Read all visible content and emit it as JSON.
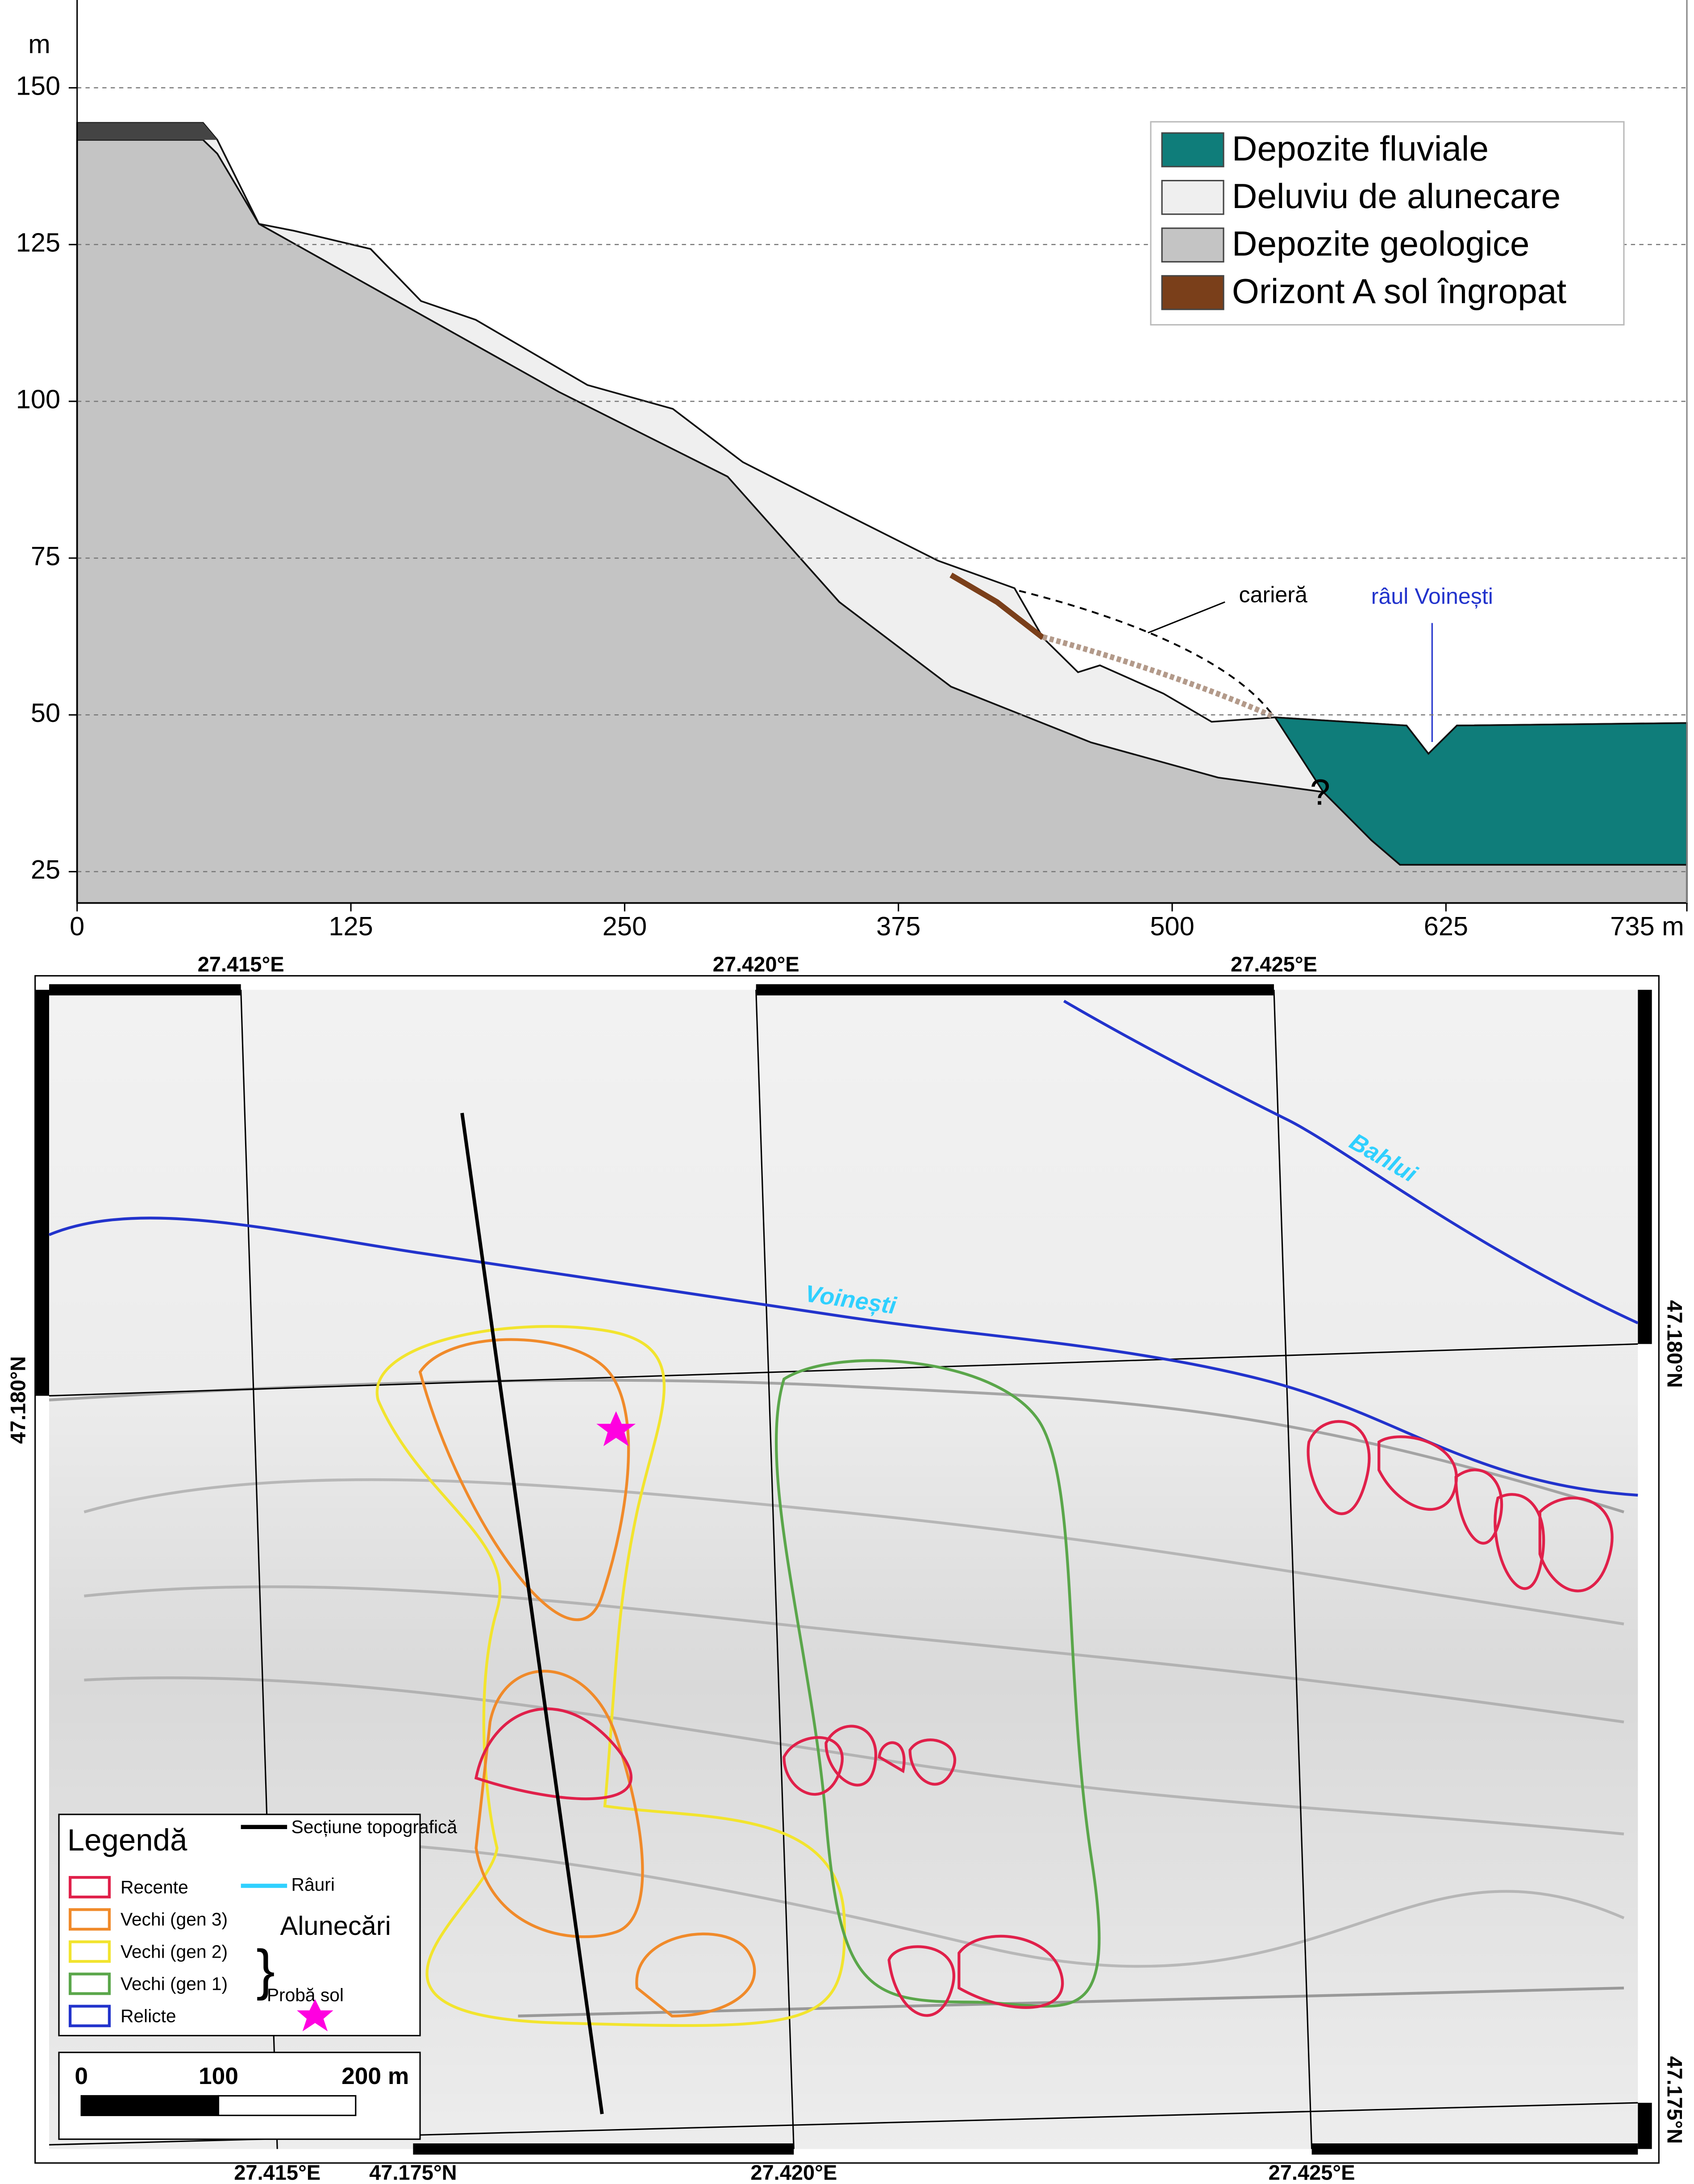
{
  "chart_data": {
    "type": "area",
    "y_unit": "m",
    "xlim": [
      0,
      735
    ],
    "ylim": [
      20,
      164
    ],
    "xticks": [
      0,
      125,
      250,
      375,
      500,
      625,
      {
        "value": 735,
        "label": "735 m"
      }
    ],
    "yticks": [
      25,
      50,
      75,
      100,
      125,
      150
    ],
    "grid": true,
    "legend": "upper right",
    "series": [
      {
        "name": "Depozite fluviale",
        "color": "#0f7d7a",
        "type": "polygon",
        "x": [
          547,
          607,
          617,
          630,
          735,
          735,
          604,
          591,
          569
        ],
        "values": [
          49.6,
          48.3,
          43.8,
          48.3,
          48.7,
          26.1,
          26.1,
          30,
          37.7
        ]
      },
      {
        "name": "Deluviu de alunecare",
        "color": "#efefef",
        "type": "area",
        "x": [
          0,
          57.5,
          64,
          83,
          99,
          134,
          157,
          182,
          233,
          272,
          304,
          348,
          393,
          428,
          441,
          457,
          467,
          496,
          518,
          547,
          607,
          617,
          630,
          735
        ],
        "values": [
          144.4,
          144.4,
          141.7,
          128.3,
          127.2,
          124.3,
          116,
          113,
          102.6,
          98.8,
          90.3,
          82.5,
          74.6,
          70.2,
          62.3,
          56.8,
          57.9,
          53.4,
          48.9,
          49.6,
          48.3,
          43.8,
          48.3,
          48.7
        ]
      },
      {
        "name": "Depozite geologice",
        "color": "#c4c4c4",
        "type": "area",
        "x": [
          0,
          57.5,
          64,
          83,
          220,
          297,
          348,
          399,
          463,
          521,
          569,
          591,
          604,
          735
        ],
        "values": [
          141.7,
          141.7,
          139.5,
          128.3,
          101.5,
          88,
          68,
          54.5,
          45.6,
          40,
          37.7,
          30,
          26.1,
          26.1
        ]
      },
      {
        "name": "Orizont A sol îngropat",
        "color": "#7a3f1a",
        "type": "line",
        "x": [
          399,
          420,
          441
        ],
        "values": [
          72.3,
          68,
          62.3
        ]
      }
    ],
    "annotations": [
      "carieră",
      "râul Voinești",
      "?"
    ]
  },
  "map": {
    "lon_top": [
      "27.415°E",
      "27.420°E",
      "27.425°E"
    ],
    "lon_bottom": [
      "27.415°E",
      "27.420°E",
      "27.425°E"
    ],
    "lat_bottom": "47.175°N",
    "lat_left": "47.180°N",
    "lat_right": [
      "47.180°N",
      "47.175°N"
    ],
    "rivers": [
      "Bahlui",
      "Voinești"
    ],
    "legend": {
      "title": "Legendă",
      "items": [
        "Recente",
        "Vechi (gen 3)",
        "Vechi (gen 2)",
        "Vechi (gen 1)",
        "Relicte"
      ],
      "group": "Alunecări",
      "section": "Secțiune topografică",
      "rivers": "Râuri",
      "sample": "Probă sol"
    },
    "scale": [
      "0",
      "100",
      "200 m"
    ]
  }
}
